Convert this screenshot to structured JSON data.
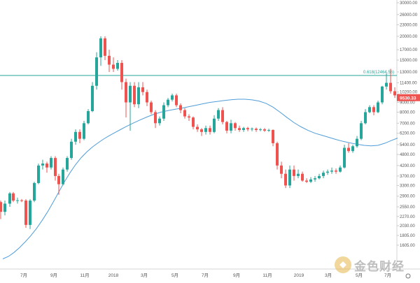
{
  "chart_data": {
    "type": "candlestick",
    "title": "",
    "xlabel": "",
    "ylabel": "",
    "scale": "log",
    "ylim": [
      1360,
      30000
    ],
    "y_ticks": [
      30000,
      26000,
      23000,
      20000,
      17000,
      15000,
      13000,
      11400,
      10200,
      9000,
      8000,
      7000,
      6200,
      5400,
      4800,
      4200,
      3700,
      3300,
      2900,
      2550,
      2270,
      2030,
      1805,
      1605
    ],
    "y_tick_labels": [
      "30000.00",
      "26000.00",
      "23000.00",
      "20000.00",
      "17000.00",
      "15000.00",
      "13000.00",
      "11400.00",
      "10200.00",
      "9000.00",
      "8000.00",
      "7000.00",
      "6200.00",
      "5400.00",
      "4800.00",
      "4200.00",
      "3700.00",
      "3300.00",
      "2900.00",
      "2550.00",
      "2270.00",
      "2030.00",
      "1805.00",
      "1605.00"
    ],
    "x_ticks": [
      "7月",
      "9月",
      "11月",
      "2018",
      "3月",
      "5月",
      "7月",
      "9月",
      "11月",
      "2019",
      "3月",
      "5月",
      "7月"
    ],
    "colors": {
      "up": "#26a69a",
      "down": "#ef5350",
      "ma": "#4f9dd9",
      "fib": "#26a69a",
      "axis_text": "#555555"
    },
    "fib_level": {
      "label": "0.618(12464.56)",
      "value": 12464.56
    },
    "current_price": {
      "label": "9530.33",
      "value": 9530.33
    },
    "ma_series": {
      "name": "",
      "values": [
        [
          4,
          1360
        ],
        [
          12,
          1400
        ],
        [
          20,
          1470
        ],
        [
          28,
          1560
        ],
        [
          36,
          1670
        ],
        [
          44,
          1800
        ],
        [
          52,
          1960
        ],
        [
          60,
          2160
        ],
        [
          68,
          2400
        ],
        [
          76,
          2700
        ],
        [
          84,
          3050
        ],
        [
          92,
          3450
        ],
        [
          100,
          3850
        ],
        [
          108,
          4250
        ],
        [
          116,
          4620
        ],
        [
          124,
          4950
        ],
        [
          132,
          5250
        ],
        [
          140,
          5520
        ],
        [
          148,
          5780
        ],
        [
          156,
          6020
        ],
        [
          164,
          6250
        ],
        [
          172,
          6480
        ],
        [
          180,
          6720
        ],
        [
          190,
          7000
        ],
        [
          200,
          7280
        ],
        [
          210,
          7550
        ],
        [
          220,
          7800
        ],
        [
          230,
          8000
        ],
        [
          240,
          8150
        ],
        [
          250,
          8280
        ],
        [
          260,
          8400
        ],
        [
          270,
          8550
        ],
        [
          280,
          8700
        ],
        [
          290,
          8850
        ],
        [
          300,
          9000
        ],
        [
          310,
          9100
        ],
        [
          320,
          9200
        ],
        [
          330,
          9300
        ],
        [
          340,
          9350
        ],
        [
          350,
          9350
        ],
        [
          360,
          9280
        ],
        [
          370,
          9150
        ],
        [
          380,
          8900
        ],
        [
          390,
          8500
        ],
        [
          400,
          8000
        ],
        [
          410,
          7500
        ],
        [
          420,
          7050
        ],
        [
          430,
          6700
        ],
        [
          440,
          6420
        ],
        [
          450,
          6200
        ],
        [
          460,
          6050
        ],
        [
          470,
          5900
        ],
        [
          480,
          5750
        ],
        [
          490,
          5620
        ],
        [
          500,
          5520
        ],
        [
          510,
          5430
        ],
        [
          520,
          5360
        ],
        [
          530,
          5320
        ],
        [
          540,
          5360
        ],
        [
          550,
          5500
        ],
        [
          560,
          5700
        ],
        [
          568,
          5850
        ]
      ]
    },
    "candles": [
      [
        1,
        2700,
        2400,
        2750,
        2200
      ],
      [
        7,
        2400,
        2650,
        2750,
        2300
      ],
      [
        14,
        2650,
        3000,
        3050,
        2550
      ],
      [
        19,
        3000,
        2750,
        3050,
        2700
      ],
      [
        25,
        2750,
        2760,
        2850,
        2650
      ],
      [
        31,
        2760,
        2750,
        2800,
        2700
      ],
      [
        37,
        2750,
        2050,
        2800,
        1980
      ],
      [
        43,
        2050,
        2750,
        2800,
        1950
      ],
      [
        49,
        2750,
        3400,
        3450,
        2700
      ],
      [
        55,
        3400,
        4200,
        4300,
        3350
      ],
      [
        61,
        4200,
        4300,
        4500,
        4000
      ],
      [
        67,
        4300,
        4100,
        4400,
        3850
      ],
      [
        73,
        4100,
        4600,
        4700,
        4000
      ],
      [
        79,
        4600,
        3700,
        4700,
        3500
      ],
      [
        84,
        3700,
        3350,
        3800,
        2950
      ],
      [
        90,
        3350,
        4000,
        4100,
        3300
      ],
      [
        96,
        4000,
        4600,
        4700,
        3900
      ],
      [
        102,
        4600,
        5600,
        5800,
        4500
      ],
      [
        108,
        5600,
        6300,
        6500,
        5400
      ],
      [
        114,
        6300,
        5800,
        6500,
        5500
      ],
      [
        120,
        5800,
        7000,
        7200,
        5700
      ],
      [
        126,
        7000,
        8100,
        8300,
        6900
      ],
      [
        132,
        8100,
        11000,
        11500,
        8000
      ],
      [
        138,
        11000,
        15500,
        16500,
        10500
      ],
      [
        144,
        15500,
        19500,
        20000,
        14000
      ],
      [
        150,
        19500,
        15800,
        20000,
        15000
      ],
      [
        156,
        15800,
        14200,
        17000,
        13000
      ],
      [
        162,
        14200,
        13500,
        15500,
        13000
      ],
      [
        168,
        13500,
        14500,
        15000,
        13200
      ],
      [
        174,
        14500,
        11500,
        15000,
        10500
      ],
      [
        180,
        11500,
        9000,
        12000,
        7500
      ],
      [
        186,
        9000,
        11000,
        11500,
        6400
      ],
      [
        192,
        11000,
        8800,
        11500,
        8500
      ],
      [
        198,
        8800,
        10800,
        11500,
        8400
      ],
      [
        204,
        10800,
        10200,
        11500,
        9800
      ],
      [
        210,
        10200,
        9000,
        10500,
        8600
      ],
      [
        216,
        9000,
        8000,
        9200,
        7800
      ],
      [
        222,
        8000,
        7000,
        8200,
        6600
      ],
      [
        228,
        7000,
        7400,
        7600,
        6800
      ],
      [
        234,
        7400,
        8700,
        9000,
        7200
      ],
      [
        240,
        8700,
        9300,
        9500,
        8500
      ],
      [
        246,
        9300,
        9800,
        10000,
        9100
      ],
      [
        252,
        9800,
        8700,
        10000,
        8500
      ],
      [
        258,
        8700,
        8200,
        8900,
        7900
      ],
      [
        264,
        8200,
        7600,
        8400,
        7400
      ],
      [
        270,
        7600,
        7500,
        7800,
        7200
      ],
      [
        276,
        7500,
        6700,
        7600,
        6500
      ],
      [
        282,
        6700,
        6500,
        6900,
        6300
      ],
      [
        288,
        6500,
        6300,
        6600,
        6000
      ],
      [
        294,
        6300,
        6600,
        6800,
        6100
      ],
      [
        300,
        6600,
        6300,
        6800,
        6100
      ],
      [
        306,
        6300,
        7400,
        7700,
        6200
      ],
      [
        312,
        7400,
        8200,
        8400,
        7200
      ],
      [
        318,
        8200,
        7100,
        8500,
        6900
      ],
      [
        324,
        7100,
        6400,
        7200,
        6200
      ],
      [
        330,
        6400,
        7000,
        7300,
        6200
      ],
      [
        336,
        7000,
        6600,
        7100,
        6400
      ],
      [
        342,
        6600,
        6450,
        6800,
        6300
      ],
      [
        348,
        6450,
        6600,
        6700,
        6300
      ],
      [
        354,
        6600,
        6500,
        6700,
        6350
      ],
      [
        360,
        6500,
        6550,
        6650,
        6350
      ],
      [
        366,
        6550,
        6450,
        6650,
        6300
      ],
      [
        372,
        6450,
        6500,
        6600,
        6350
      ],
      [
        378,
        6500,
        6400,
        6600,
        6300
      ],
      [
        384,
        6400,
        6450,
        6550,
        6300
      ],
      [
        390,
        6450,
        5500,
        6500,
        5300
      ],
      [
        396,
        5500,
        4200,
        5600,
        4000
      ],
      [
        402,
        4200,
        3800,
        4400,
        3600
      ],
      [
        408,
        3800,
        3300,
        4000,
        3200
      ],
      [
        414,
        3300,
        4000,
        4200,
        3200
      ],
      [
        420,
        4000,
        3700,
        4200,
        3500
      ],
      [
        426,
        3700,
        3800,
        4000,
        3600
      ],
      [
        432,
        3800,
        3500,
        3900,
        3450
      ],
      [
        438,
        3500,
        3450,
        3600,
        3400
      ],
      [
        444,
        3450,
        3550,
        3650,
        3400
      ],
      [
        450,
        3550,
        3600,
        3700,
        3450
      ],
      [
        456,
        3600,
        3700,
        3800,
        3550
      ],
      [
        462,
        3700,
        3850,
        3950,
        3600
      ],
      [
        468,
        3850,
        3900,
        4000,
        3750
      ],
      [
        474,
        3900,
        3950,
        4100,
        3800
      ],
      [
        480,
        3950,
        3900,
        4050,
        3800
      ],
      [
        486,
        3900,
        4100,
        4200,
        3850
      ],
      [
        492,
        4100,
        5200,
        5400,
        4050
      ],
      [
        498,
        5200,
        5000,
        5500,
        4900
      ],
      [
        504,
        5000,
        5300,
        5400,
        4900
      ],
      [
        510,
        5300,
        5800,
        6000,
        5200
      ],
      [
        516,
        5800,
        7000,
        7200,
        5700
      ],
      [
        522,
        7000,
        8000,
        8300,
        6900
      ],
      [
        528,
        8000,
        8500,
        8700,
        7900
      ],
      [
        534,
        8500,
        8000,
        8700,
        7700
      ],
      [
        540,
        8000,
        9000,
        9200,
        7900
      ],
      [
        546,
        9000,
        10900,
        11000,
        8800
      ],
      [
        552,
        10900,
        11400,
        12800,
        10500
      ],
      [
        558,
        11400,
        10300,
        13500,
        10000
      ],
      [
        564,
        10300,
        9800,
        10800,
        9500
      ],
      [
        569,
        9800,
        9530,
        10000,
        9400
      ]
    ]
  }
}
